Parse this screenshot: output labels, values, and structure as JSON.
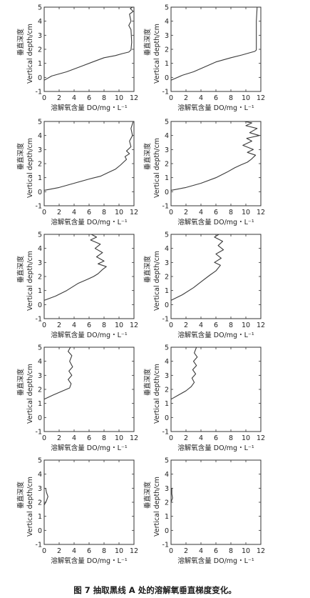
{
  "caption": "图 7   抽取黑线 A 处的溶解氧垂直梯度变化。",
  "chart_data": [
    {
      "type": "line",
      "xlim": [
        0,
        12
      ],
      "ylim": [
        -1,
        5
      ],
      "xticks": [
        0,
        2,
        4,
        6,
        8,
        10,
        12
      ],
      "yticks": [
        -1,
        0,
        1,
        2,
        3,
        4,
        5
      ],
      "xlabel": "溶解氧含量 DO/mg・L⁻¹",
      "ylabel_cn": "垂直深度",
      "ylabel_en": "Vertical depth/cm",
      "series": [
        {
          "points": [
            [
              0,
              -0.2
            ],
            [
              1,
              0.1
            ],
            [
              3,
              0.4
            ],
            [
              5,
              0.8
            ],
            [
              7,
              1.2
            ],
            [
              8,
              1.4
            ],
            [
              9.5,
              1.55
            ],
            [
              10.5,
              1.7
            ],
            [
              11.3,
              1.8
            ],
            [
              11.6,
              1.95
            ],
            [
              11.7,
              2.5
            ],
            [
              11.6,
              3.4
            ],
            [
              11.3,
              3.7
            ],
            [
              11.6,
              4.0
            ],
            [
              11.4,
              4.5
            ],
            [
              11.9,
              4.7
            ],
            [
              11.5,
              4.9
            ],
            [
              11.8,
              5.0
            ]
          ]
        }
      ]
    },
    {
      "type": "line",
      "xlim": [
        0,
        12
      ],
      "ylim": [
        -1,
        5
      ],
      "xticks": [
        0,
        2,
        4,
        6,
        8,
        10,
        12
      ],
      "yticks": [
        -1,
        0,
        1,
        2,
        3,
        4,
        5
      ],
      "xlabel": "溶解氧含量 DO/mg・L⁻¹",
      "ylabel_cn": "垂直深度",
      "ylabel_en": "Vertical depth/cm",
      "series": [
        {
          "points": [
            [
              0,
              -0.2
            ],
            [
              1.5,
              0.15
            ],
            [
              3,
              0.4
            ],
            [
              4.5,
              0.75
            ],
            [
              6,
              1.1
            ],
            [
              8,
              1.4
            ],
            [
              9.5,
              1.6
            ],
            [
              10.5,
              1.75
            ],
            [
              11.2,
              1.85
            ],
            [
              11.4,
              1.95
            ],
            [
              11.4,
              3.0
            ],
            [
              11.4,
              4.0
            ],
            [
              11.5,
              5.0
            ]
          ]
        }
      ]
    },
    {
      "type": "line",
      "xlim": [
        0,
        12
      ],
      "ylim": [
        -1,
        5
      ],
      "xticks": [
        0,
        2,
        4,
        6,
        8,
        10,
        12
      ],
      "yticks": [
        -1,
        0,
        1,
        2,
        3,
        4,
        5
      ],
      "xlabel": "溶解氧含量 DO/mg・L⁻¹",
      "ylabel_cn": "垂直深度",
      "ylabel_en": "Vertical depth/cm",
      "series": [
        {
          "points": [
            [
              0,
              0.1
            ],
            [
              2,
              0.3
            ],
            [
              4,
              0.6
            ],
            [
              6,
              0.9
            ],
            [
              7.5,
              1.1
            ],
            [
              8.5,
              1.35
            ],
            [
              9.5,
              1.6
            ],
            [
              10.2,
              1.9
            ],
            [
              10.6,
              2.1
            ],
            [
              11.0,
              2.3
            ],
            [
              10.8,
              2.5
            ],
            [
              11.4,
              2.7
            ],
            [
              11.0,
              2.9
            ],
            [
              11.6,
              3.2
            ],
            [
              11.4,
              3.6
            ],
            [
              11.8,
              4.0
            ],
            [
              11.6,
              4.5
            ],
            [
              11.9,
              5.0
            ]
          ]
        }
      ]
    },
    {
      "type": "line",
      "xlim": [
        0,
        12
      ],
      "ylim": [
        -1,
        5
      ],
      "xticks": [
        0,
        2,
        4,
        6,
        8,
        10,
        12
      ],
      "yticks": [
        -1,
        0,
        1,
        2,
        3,
        4,
        5
      ],
      "xlabel": "溶解氧含量 DO/mg・L⁻¹",
      "ylabel_cn": "垂直深度",
      "ylabel_en": "Vertical depth/cm",
      "series": [
        {
          "points": [
            [
              0,
              0.1
            ],
            [
              2,
              0.3
            ],
            [
              4,
              0.6
            ],
            [
              6,
              1.0
            ],
            [
              7.5,
              1.4
            ],
            [
              8.5,
              1.7
            ],
            [
              9.3,
              1.9
            ],
            [
              10.2,
              2.1
            ],
            [
              10.7,
              2.3
            ],
            [
              11.3,
              2.6
            ],
            [
              10.2,
              2.8
            ],
            [
              11.0,
              3.0
            ],
            [
              9.6,
              3.3
            ],
            [
              10.8,
              3.6
            ],
            [
              10.1,
              3.8
            ],
            [
              11.8,
              4.0
            ],
            [
              10.5,
              4.2
            ],
            [
              11.5,
              4.5
            ],
            [
              10.0,
              4.7
            ],
            [
              10.8,
              4.9
            ],
            [
              9.8,
              5.0
            ]
          ]
        }
      ]
    },
    {
      "type": "line",
      "xlim": [
        0,
        12
      ],
      "ylim": [
        -1,
        5
      ],
      "xticks": [
        0,
        2,
        4,
        6,
        8,
        10,
        12
      ],
      "yticks": [
        -1,
        0,
        1,
        2,
        3,
        4,
        5
      ],
      "xlabel": "溶解氧含量 DO/mg・L⁻¹",
      "ylabel_cn": "垂直深度",
      "ylabel_en": "Vertical depth/cm",
      "series": [
        {
          "points": [
            [
              0,
              0.3
            ],
            [
              1.5,
              0.6
            ],
            [
              3,
              1.0
            ],
            [
              4.5,
              1.5
            ],
            [
              5.8,
              1.8
            ],
            [
              6.6,
              2.0
            ],
            [
              7.2,
              2.2
            ],
            [
              7.8,
              2.5
            ],
            [
              8.3,
              2.7
            ],
            [
              7.2,
              2.9
            ],
            [
              8.0,
              3.1
            ],
            [
              7.0,
              3.4
            ],
            [
              7.8,
              3.7
            ],
            [
              6.8,
              4.0
            ],
            [
              7.5,
              4.3
            ],
            [
              6.2,
              4.6
            ],
            [
              7.0,
              4.8
            ],
            [
              6.3,
              5.0
            ]
          ]
        }
      ]
    },
    {
      "type": "line",
      "xlim": [
        0,
        12
      ],
      "ylim": [
        -1,
        5
      ],
      "xticks": [
        0,
        2,
        4,
        6,
        8,
        10,
        12
      ],
      "yticks": [
        -1,
        0,
        1,
        2,
        3,
        4,
        5
      ],
      "xlabel": "溶解氧含量 DO/mg・L⁻¹",
      "ylabel_cn": "垂直深度",
      "ylabel_en": "Vertical depth/cm",
      "series": [
        {
          "points": [
            [
              0,
              0.3
            ],
            [
              1.5,
              0.7
            ],
            [
              3,
              1.2
            ],
            [
              4.2,
              1.7
            ],
            [
              5.2,
              2.1
            ],
            [
              6.0,
              2.4
            ],
            [
              6.6,
              2.8
            ],
            [
              5.8,
              3.0
            ],
            [
              6.7,
              3.3
            ],
            [
              6.0,
              3.6
            ],
            [
              7.0,
              3.9
            ],
            [
              6.3,
              4.2
            ],
            [
              6.9,
              4.5
            ],
            [
              5.8,
              4.8
            ],
            [
              6.4,
              5.0
            ]
          ]
        }
      ]
    },
    {
      "type": "line",
      "xlim": [
        0,
        12
      ],
      "ylim": [
        -1,
        5
      ],
      "xticks": [
        0,
        2,
        4,
        6,
        8,
        10,
        12
      ],
      "yticks": [
        -1,
        0,
        1,
        2,
        3,
        4,
        5
      ],
      "xlabel": "溶解氧含量 DO/mg・L⁻¹",
      "ylabel_cn": "垂直深度",
      "ylabel_en": "Vertical depth/cm",
      "series": [
        {
          "points": [
            [
              0,
              1.3
            ],
            [
              1.2,
              1.6
            ],
            [
              2.5,
              1.9
            ],
            [
              3.4,
              2.1
            ],
            [
              3.6,
              2.4
            ],
            [
              3.2,
              2.7
            ],
            [
              3.7,
              3.0
            ],
            [
              3.3,
              3.3
            ],
            [
              3.8,
              3.6
            ],
            [
              3.4,
              4.0
            ],
            [
              3.7,
              4.4
            ],
            [
              3.2,
              4.7
            ],
            [
              3.5,
              5.0
            ]
          ]
        }
      ]
    },
    {
      "type": "line",
      "xlim": [
        0,
        12
      ],
      "ylim": [
        -1,
        5
      ],
      "xticks": [
        0,
        2,
        4,
        6,
        8,
        10,
        12
      ],
      "yticks": [
        -1,
        0,
        1,
        2,
        3,
        4,
        5
      ],
      "xlabel": "溶解氧含量 DO/mg・L⁻¹",
      "ylabel_cn": "垂直深度",
      "ylabel_en": "Vertical depth/cm",
      "series": [
        {
          "points": [
            [
              0,
              1.3
            ],
            [
              1.0,
              1.6
            ],
            [
              2.0,
              1.9
            ],
            [
              2.7,
              2.2
            ],
            [
              3.1,
              2.5
            ],
            [
              2.8,
              2.8
            ],
            [
              3.3,
              3.1
            ],
            [
              2.9,
              3.4
            ],
            [
              3.4,
              3.7
            ],
            [
              3.0,
              4.0
            ],
            [
              3.5,
              4.3
            ],
            [
              3.1,
              4.6
            ],
            [
              3.4,
              5.0
            ]
          ]
        }
      ]
    },
    {
      "type": "line",
      "xlim": [
        0,
        12
      ],
      "ylim": [
        -1,
        5
      ],
      "xticks": [
        0,
        2,
        4,
        6,
        8,
        10,
        12
      ],
      "yticks": [
        -1,
        0,
        1,
        2,
        3,
        4,
        5
      ],
      "xlabel": "溶解氧含量 DO/mg・L⁻¹",
      "ylabel_cn": "垂直深度",
      "ylabel_en": "Vertical depth/cm",
      "series": [
        {
          "points": [
            [
              0,
              1.8
            ],
            [
              0.3,
              2.1
            ],
            [
              0.5,
              2.4
            ],
            [
              0.3,
              2.7
            ],
            [
              0.2,
              3.0
            ]
          ]
        }
      ]
    },
    {
      "type": "line",
      "xlim": [
        0,
        12
      ],
      "ylim": [
        -1,
        5
      ],
      "xticks": [
        0,
        2,
        4,
        6,
        8,
        10,
        12
      ],
      "yticks": [
        -1,
        0,
        1,
        2,
        3,
        4,
        5
      ],
      "xlabel": "溶解氧含量 DO/mg・L⁻¹",
      "ylabel_cn": "垂直深度",
      "ylabel_en": "Vertical depth/cm",
      "series": [
        {
          "points": [
            [
              0,
              2.0
            ],
            [
              0.2,
              2.3
            ],
            [
              0.1,
              2.6
            ],
            [
              0.1,
              3.0
            ]
          ]
        }
      ]
    }
  ]
}
